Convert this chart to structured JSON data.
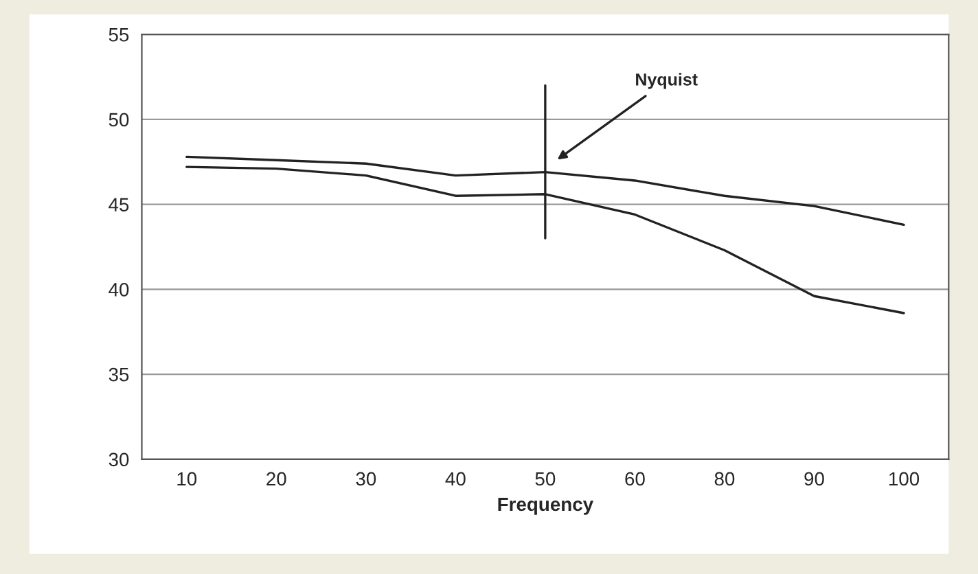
{
  "chart_data": {
    "type": "line",
    "xlabel": "Frequency",
    "categories": [
      "10",
      "20",
      "30",
      "40",
      "50",
      "60",
      "80",
      "90",
      "100"
    ],
    "series": [
      {
        "color": "#222222",
        "values": [
          47.8,
          47.6,
          47.4,
          46.7,
          46.9,
          46.4,
          45.5,
          44.9,
          43.8
        ]
      },
      {
        "color": "#222222",
        "values": [
          47.2,
          47.1,
          46.7,
          45.5,
          45.6,
          44.4,
          42.3,
          39.6,
          38.6
        ]
      }
    ],
    "ylim": [
      30,
      55
    ],
    "yticks": [
      30,
      35,
      40,
      45,
      50,
      55
    ],
    "grid": "y",
    "legend": false,
    "marker": "none",
    "line_style": "solid",
    "ref_lines": [
      {
        "axis": "x",
        "value": "50",
        "label": "Nyquist",
        "color": "#222222"
      }
    ]
  }
}
